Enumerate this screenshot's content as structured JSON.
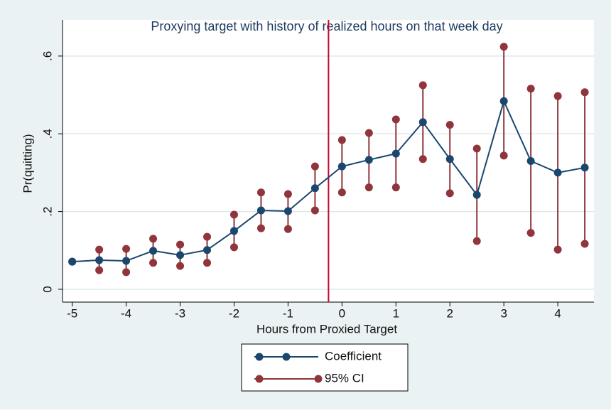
{
  "chart_data": {
    "type": "line-ci",
    "title": "Proxying target with history of realized hours on that week day",
    "x_label": "Hours from Proxied Target",
    "y_label": "Pr(quitting)",
    "x": [
      -5,
      -4.5,
      -4,
      -3.5,
      -3,
      -2.5,
      -2,
      -1.5,
      -1,
      -0.5,
      0,
      0.5,
      1,
      1.5,
      2,
      2.5,
      3,
      3.5,
      4,
      4.5
    ],
    "series": [
      {
        "name": "Coefficient",
        "color": "#1a476f",
        "values": [
          0.071,
          0.075,
          0.073,
          0.099,
          0.088,
          0.101,
          0.15,
          0.203,
          0.201,
          0.26,
          0.316,
          0.333,
          0.349,
          0.43,
          0.335,
          0.243,
          0.484,
          0.33,
          0.3,
          0.313
        ]
      },
      {
        "name": "95% CI",
        "color": "#90353b",
        "lower": [
          0.071,
          0.049,
          0.044,
          0.068,
          0.06,
          0.068,
          0.108,
          0.157,
          0.155,
          0.203,
          0.249,
          0.262,
          0.262,
          0.335,
          0.247,
          0.124,
          0.344,
          0.145,
          0.102,
          0.117
        ],
        "upper": [
          0.071,
          0.102,
          0.104,
          0.13,
          0.115,
          0.135,
          0.192,
          0.249,
          0.245,
          0.316,
          0.384,
          0.402,
          0.437,
          0.525,
          0.423,
          0.362,
          0.624,
          0.516,
          0.497,
          0.507
        ]
      }
    ],
    "vline": {
      "value": -0.25,
      "color": "#c10534"
    },
    "xlim": [
      -5.18,
      4.67
    ],
    "xticks": [
      -5,
      -4,
      -3,
      -2,
      -1,
      0,
      1,
      2,
      3,
      4
    ],
    "ylim": [
      -0.033,
      0.693
    ],
    "yticks": [
      0,
      {
        "value": 0.2,
        "label": ".2"
      },
      {
        "value": 0.4,
        "label": ".4"
      },
      {
        "value": 0.6,
        "label": ".6"
      }
    ],
    "grid": true
  }
}
